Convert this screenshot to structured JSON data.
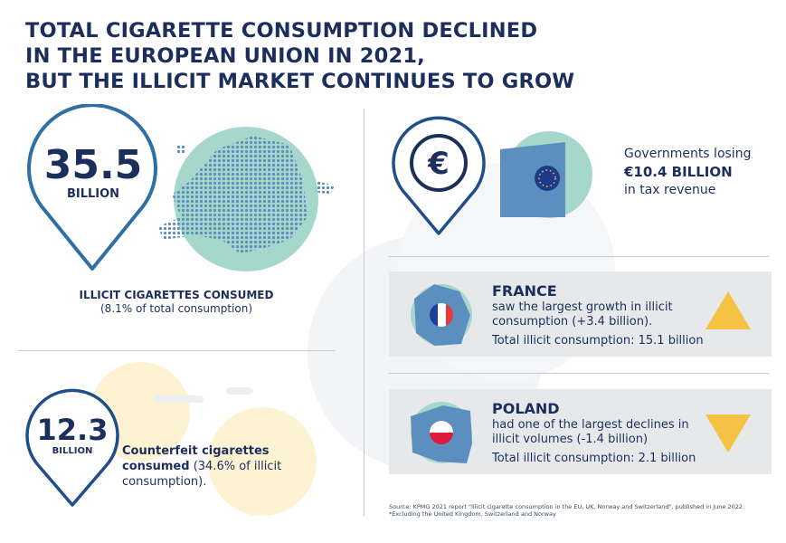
{
  "title": {
    "lines": [
      "TOTAL CIGARETTE CONSUMPTION DECLINED",
      "IN THE EUROPEAN UNION IN 2021,",
      "BUT THE ILLICIT MARKET CONTINUES TO GROW"
    ]
  },
  "illicit": {
    "value": "35.5",
    "unit": "BILLION",
    "label": "ILLICIT CIGARETTES CONSUMED",
    "sub": "(8.1% of total consumption)",
    "icon": "europe-map-icon"
  },
  "counterfeit": {
    "value": "12.3",
    "unit": "BILLION",
    "label_bold": "Counterfeit cigarettes consumed",
    "label_rest": " (34.6% of illicit consumption)."
  },
  "tax": {
    "line1": "Governments losing",
    "amount": "€10.4 BILLION",
    "line3": "in tax revenue",
    "icon": "euro-icon",
    "building_icon": "eu-building-icon"
  },
  "countries": [
    {
      "name": "FRANCE",
      "desc": "saw the largest growth in illicit consumption (+3.4 billion).",
      "total": "Total illicit consumption: 15.1 billion",
      "trend": "up"
    },
    {
      "name": "POLAND",
      "desc": "had one of the largest declines in illicit volumes (-1.4 billion)",
      "total": "Total illicit consumption: 2.1 billion",
      "trend": "down"
    }
  ],
  "source": {
    "line1": "Source: KPMG 2021 report \"Illicit cigarette consumption in the EU, UK, Norway and Switzerland\", published in June 2022.",
    "line2": "*Excluding the United Kingdom, Switzerland and Norway"
  },
  "colors": {
    "navy": "#1c2f5c",
    "pin": "#2f6fa6",
    "teal": "#a5d7cb",
    "map": "#5b8fc0",
    "arrow": "#f5c243",
    "panel": "#e7e8ea"
  }
}
